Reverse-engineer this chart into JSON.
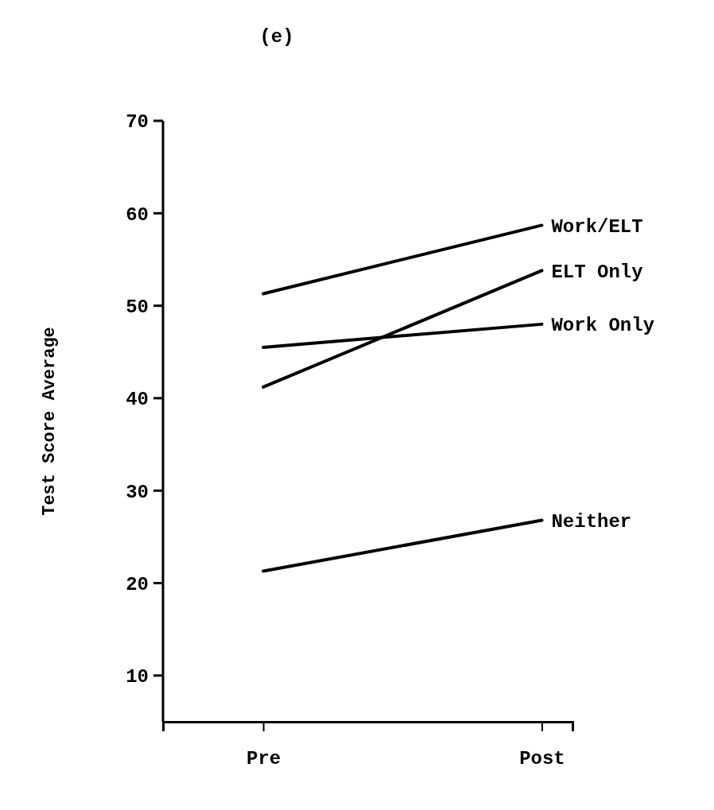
{
  "chart_data": {
    "type": "line",
    "title": "(e)",
    "ylabel": "Test Score Average",
    "categories": [
      "Pre",
      "Post"
    ],
    "ylim": [
      5,
      70
    ],
    "yticks": [
      10,
      20,
      30,
      40,
      50,
      60,
      70
    ],
    "series": [
      {
        "name": "Work/ELT",
        "color": "#000000",
        "values": [
          51.3,
          58.7
        ]
      },
      {
        "name": "ELT Only",
        "color": "#000000",
        "values": [
          41.2,
          53.8
        ]
      },
      {
        "name": "Work Only",
        "color": "#000000",
        "values": [
          45.5,
          48
        ]
      },
      {
        "name": "Neither",
        "color": "#000000",
        "values": [
          21.3,
          26.8
        ]
      }
    ]
  }
}
